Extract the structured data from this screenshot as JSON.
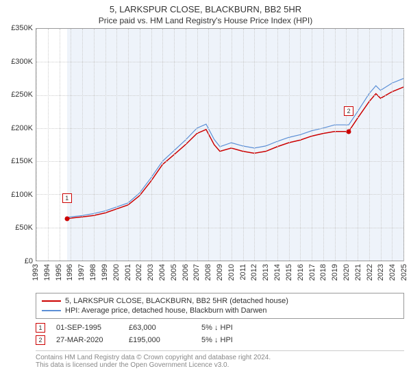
{
  "title": "5, LARKSPUR CLOSE, BLACKBURN, BB2 5HR",
  "subtitle": "Price paid vs. HM Land Registry's House Price Index (HPI)",
  "chart": {
    "type": "line",
    "background_color": "#ffffff",
    "shade_color": "#eef3fa",
    "grid_color": "#cccccc",
    "border_color": "#999999",
    "ylim": [
      0,
      350000
    ],
    "ytick_step": 50000,
    "y_labels": [
      "£0",
      "£50K",
      "£100K",
      "£150K",
      "£200K",
      "£250K",
      "£300K",
      "£350K"
    ],
    "x_years": [
      1993,
      1994,
      1995,
      1996,
      1997,
      1998,
      1999,
      2000,
      2001,
      2002,
      2003,
      2004,
      2005,
      2006,
      2007,
      2008,
      2009,
      2010,
      2011,
      2012,
      2013,
      2014,
      2015,
      2016,
      2017,
      2018,
      2019,
      2020,
      2021,
      2022,
      2023,
      2024,
      2025
    ],
    "shade_start_year": 1995.67,
    "shade_end_year": 2025,
    "series": [
      {
        "name": "price_paid",
        "label": "5, LARKSPUR CLOSE, BLACKBURN, BB2 5HR (detached house)",
        "color": "#cc0000",
        "line_width": 1.5,
        "points": [
          [
            1995.67,
            63000
          ],
          [
            1996,
            64000
          ],
          [
            1997,
            66000
          ],
          [
            1998,
            68000
          ],
          [
            1999,
            72000
          ],
          [
            2000,
            78000
          ],
          [
            2001,
            84000
          ],
          [
            2002,
            98000
          ],
          [
            2003,
            120000
          ],
          [
            2004,
            145000
          ],
          [
            2005,
            160000
          ],
          [
            2006,
            175000
          ],
          [
            2007,
            192000
          ],
          [
            2007.8,
            198000
          ],
          [
            2008.5,
            175000
          ],
          [
            2009,
            165000
          ],
          [
            2010,
            170000
          ],
          [
            2011,
            165000
          ],
          [
            2012,
            162000
          ],
          [
            2013,
            165000
          ],
          [
            2014,
            172000
          ],
          [
            2015,
            178000
          ],
          [
            2016,
            182000
          ],
          [
            2017,
            188000
          ],
          [
            2018,
            192000
          ],
          [
            2019,
            195000
          ],
          [
            2020.23,
            195000
          ],
          [
            2021,
            215000
          ],
          [
            2022,
            240000
          ],
          [
            2022.6,
            252000
          ],
          [
            2023,
            245000
          ],
          [
            2024,
            255000
          ],
          [
            2025,
            262000
          ]
        ]
      },
      {
        "name": "hpi",
        "label": "HPI: Average price, detached house, Blackburn with Darwen",
        "color": "#5b8fd6",
        "line_width": 1.2,
        "points": [
          [
            1995.67,
            65000
          ],
          [
            1996,
            66000
          ],
          [
            1997,
            68000
          ],
          [
            1998,
            71000
          ],
          [
            1999,
            75000
          ],
          [
            2000,
            81000
          ],
          [
            2001,
            87000
          ],
          [
            2002,
            102000
          ],
          [
            2003,
            125000
          ],
          [
            2004,
            150000
          ],
          [
            2005,
            166000
          ],
          [
            2006,
            182000
          ],
          [
            2007,
            200000
          ],
          [
            2007.8,
            206000
          ],
          [
            2008.5,
            183000
          ],
          [
            2009,
            172000
          ],
          [
            2010,
            178000
          ],
          [
            2011,
            173000
          ],
          [
            2012,
            170000
          ],
          [
            2013,
            173000
          ],
          [
            2014,
            180000
          ],
          [
            2015,
            186000
          ],
          [
            2016,
            190000
          ],
          [
            2017,
            196000
          ],
          [
            2018,
            200000
          ],
          [
            2019,
            205000
          ],
          [
            2020.23,
            205000
          ],
          [
            2021,
            225000
          ],
          [
            2022,
            252000
          ],
          [
            2022.6,
            264000
          ],
          [
            2023,
            257000
          ],
          [
            2024,
            268000
          ],
          [
            2025,
            275000
          ]
        ]
      }
    ],
    "markers": [
      {
        "id": "1",
        "year": 1995.67,
        "value": 63000,
        "label_y_offset": -30
      },
      {
        "id": "2",
        "year": 2020.23,
        "value": 195000,
        "label_y_offset": -30
      }
    ]
  },
  "legend": {
    "items": [
      {
        "color": "#cc0000",
        "label": "5, LARKSPUR CLOSE, BLACKBURN, BB2 5HR (detached house)"
      },
      {
        "color": "#5b8fd6",
        "label": "HPI: Average price, detached house, Blackburn with Darwen"
      }
    ]
  },
  "data_rows": [
    {
      "marker": "1",
      "date": "01-SEP-1995",
      "price": "£63,000",
      "delta": "5% ↓ HPI"
    },
    {
      "marker": "2",
      "date": "27-MAR-2020",
      "price": "£195,000",
      "delta": "5% ↓ HPI"
    }
  ],
  "footer": {
    "line1": "Contains HM Land Registry data © Crown copyright and database right 2024.",
    "line2": "This data is licensed under the Open Government Licence v3.0."
  }
}
